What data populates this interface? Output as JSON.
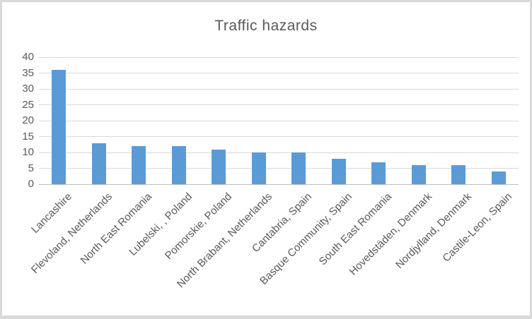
{
  "chart_data": {
    "type": "bar",
    "title": "Traffic hazards",
    "categories": [
      "Lancashire",
      "Flevoland, Netherlands",
      "North East Romania",
      "Lubelski, , Poland",
      "Pomorskie, Poland",
      "North Brabant, Netherlands",
      "Cantabria, Spain",
      "Basque Community, Spain",
      "South East Romania",
      "Hovedstäden, Denmark",
      "Nordjylland, Denmark",
      "Castile-Leon, Spain"
    ],
    "values": [
      36,
      13,
      12,
      12,
      11,
      10,
      10,
      8,
      7,
      6,
      6,
      4
    ],
    "xlabel": "",
    "ylabel": "",
    "ylim": [
      0,
      40
    ],
    "yticks": [
      0,
      5,
      10,
      15,
      20,
      25,
      30,
      35,
      40
    ],
    "grid": true,
    "legend": "none",
    "bar_color": "#5b9bd5",
    "gridline_color": "#d9d9d9",
    "axis_line_color": "#bfbfbf",
    "text_color": "#595959",
    "frame_border_color": "#d9d9d9"
  }
}
